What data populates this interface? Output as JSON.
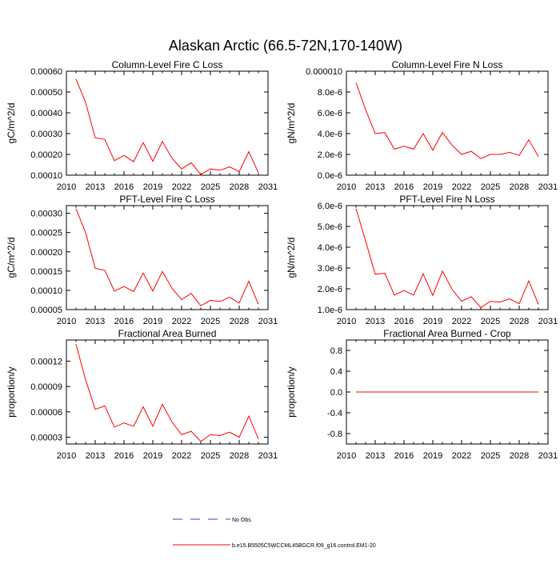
{
  "figure": {
    "title": "Alaskan Arctic (66.5-72N,170-140W)"
  },
  "chart_data": [
    {
      "type": "line",
      "title": "Column-Level Fire C Loss",
      "xlabel": "",
      "ylabel": "gC/m^2/d",
      "xlim": [
        2010,
        2031
      ],
      "ylim": [
        0.0001,
        0.0006
      ],
      "xticks": [
        2010,
        2013,
        2016,
        2019,
        2022,
        2025,
        2028,
        2031
      ],
      "yticks": [
        "0.00010",
        "0.00020",
        "0.00030",
        "0.00040",
        "0.00050",
        "0.00060"
      ],
      "ytick_values": [
        0.0001,
        0.0002,
        0.0003,
        0.0004,
        0.0005,
        0.0006
      ],
      "grid": false,
      "x": [
        2011,
        2012,
        2013,
        2014,
        2015,
        2016,
        2017,
        2018,
        2019,
        2020,
        2021,
        2022,
        2023,
        2024,
        2025,
        2026,
        2027,
        2028,
        2029,
        2030
      ],
      "series": [
        {
          "values": [
            0.000562,
            0.00045,
            0.00028,
            0.000272,
            0.00017,
            0.000195,
            0.000165,
            0.000257,
            0.000167,
            0.000262,
            0.000182,
            0.00013,
            0.00016,
            0.000103,
            0.00013,
            0.000124,
            0.00014,
            0.000117,
            0.000213,
            0.000112
          ],
          "color": "#ff0000"
        }
      ]
    },
    {
      "type": "line",
      "title": "Column-Level Fire N Loss",
      "xlabel": "",
      "ylabel": "gN/m^2/d",
      "xlim": [
        2010,
        2031
      ],
      "ylim": [
        0,
        1e-05
      ],
      "xticks": [
        2010,
        2013,
        2016,
        2019,
        2022,
        2025,
        2028,
        2031
      ],
      "yticks": [
        "0.0e-6",
        "2.0e-6",
        "4.0e-6",
        "6.0e-6",
        "8.0e-6",
        "0.000010"
      ],
      "ytick_values": [
        0,
        2e-06,
        4e-06,
        6e-06,
        8e-06,
        1e-05
      ],
      "grid": false,
      "x": [
        2011,
        2012,
        2013,
        2014,
        2015,
        2016,
        2017,
        2018,
        2019,
        2020,
        2021,
        2022,
        2023,
        2024,
        2025,
        2026,
        2027,
        2028,
        2029,
        2030
      ],
      "series": [
        {
          "values": [
            8.9e-06,
            6.3e-06,
            4e-06,
            4.1e-06,
            2.5e-06,
            2.8e-06,
            2.5e-06,
            4e-06,
            2.4e-06,
            4.1e-06,
            2.9e-06,
            2e-06,
            2.3e-06,
            1.6e-06,
            2e-06,
            2e-06,
            2.2e-06,
            1.9e-06,
            3.4e-06,
            1.8e-06
          ],
          "color": "#ff0000"
        }
      ]
    },
    {
      "type": "line",
      "title": "PFT-Level Fire C Loss",
      "xlabel": "",
      "ylabel": "gC/m^2/d",
      "xlim": [
        2010,
        2031
      ],
      "ylim": [
        5e-05,
        0.00032
      ],
      "xticks": [
        2010,
        2013,
        2016,
        2019,
        2022,
        2025,
        2028,
        2031
      ],
      "yticks": [
        "0.00005",
        "0.00010",
        "0.00015",
        "0.00020",
        "0.00025",
        "0.00030"
      ],
      "ytick_values": [
        5e-05,
        0.0001,
        0.00015,
        0.0002,
        0.00025,
        0.0003
      ],
      "grid": false,
      "x": [
        2011,
        2012,
        2013,
        2014,
        2015,
        2016,
        2017,
        2018,
        2019,
        2020,
        2021,
        2022,
        2023,
        2024,
        2025,
        2026,
        2027,
        2028,
        2029,
        2030
      ],
      "series": [
        {
          "values": [
            0.000312,
            0.00025,
            0.000157,
            0.000152,
            9.8e-05,
            0.00011,
            9.7e-05,
            0.000145,
            9.8e-05,
            0.000149,
            0.000105,
            7.6e-05,
            9.2e-05,
            6e-05,
            7.4e-05,
            7.1e-05,
            8.2e-05,
            6.7e-05,
            0.000124,
            6.4e-05
          ],
          "color": "#ff0000"
        }
      ]
    },
    {
      "type": "line",
      "title": "PFT-Level Fire N Loss",
      "xlabel": "",
      "ylabel": "gN/m^2/d",
      "xlim": [
        2010,
        2031
      ],
      "ylim": [
        1e-06,
        6e-06
      ],
      "xticks": [
        2010,
        2013,
        2016,
        2019,
        2022,
        2025,
        2028,
        2031
      ],
      "yticks": [
        "1.0e-6",
        "2.0e-6",
        "3.0e-6",
        "4.0e-6",
        "5.0e-6",
        "6.0e-6"
      ],
      "ytick_values": [
        1e-06,
        2e-06,
        3e-06,
        4e-06,
        5e-06,
        6e-06
      ],
      "grid": false,
      "x": [
        2011,
        2012,
        2013,
        2014,
        2015,
        2016,
        2017,
        2018,
        2019,
        2020,
        2021,
        2022,
        2023,
        2024,
        2025,
        2026,
        2027,
        2028,
        2029,
        2030
      ],
      "series": [
        {
          "values": [
            5.85e-06,
            4.3e-06,
            2.7e-06,
            2.75e-06,
            1.7e-06,
            1.92e-06,
            1.7e-06,
            2.72e-06,
            1.68e-06,
            2.85e-06,
            1.98e-06,
            1.4e-06,
            1.62e-06,
            1.1e-06,
            1.4e-06,
            1.36e-06,
            1.52e-06,
            1.28e-06,
            2.38e-06,
            1.25e-06
          ],
          "color": "#ff0000"
        }
      ]
    },
    {
      "type": "line",
      "title": "Fractional Area Burned",
      "xlabel": "",
      "ylabel": "proportion/y",
      "xlim": [
        2010,
        2031
      ],
      "ylim": [
        2.2e-05,
        0.000145
      ],
      "xticks": [
        2010,
        2013,
        2016,
        2019,
        2022,
        2025,
        2028,
        2031
      ],
      "yticks": [
        "0.00003",
        "0.00006",
        "0.00009",
        "0.00012"
      ],
      "ytick_values": [
        3e-05,
        6e-05,
        9e-05,
        0.00012
      ],
      "grid": false,
      "x": [
        2011,
        2012,
        2013,
        2014,
        2015,
        2016,
        2017,
        2018,
        2019,
        2020,
        2021,
        2022,
        2023,
        2024,
        2025,
        2026,
        2027,
        2028,
        2029,
        2030
      ],
      "series": [
        {
          "values": [
            0.00014,
            9.8e-05,
            6.3e-05,
            6.7e-05,
            4.2e-05,
            4.7e-05,
            4.3e-05,
            6.6e-05,
            4.3e-05,
            6.9e-05,
            4.8e-05,
            3.3e-05,
            3.7e-05,
            2.5e-05,
            3.3e-05,
            3.2e-05,
            3.6e-05,
            3e-05,
            5.5e-05,
            2.8e-05
          ],
          "color": "#ff0000"
        }
      ]
    },
    {
      "type": "line",
      "title": "Fractional Area Burned - Crop",
      "xlabel": "",
      "ylabel": "proportion/y",
      "xlim": [
        2010,
        2031
      ],
      "ylim": [
        -1,
        1
      ],
      "xticks": [
        2010,
        2013,
        2016,
        2019,
        2022,
        2025,
        2028,
        2031
      ],
      "yticks": [
        "-0.8",
        "-0.4",
        "0.0",
        "0.4",
        "0.8"
      ],
      "ytick_values": [
        -0.8,
        -0.4,
        0,
        0.4,
        0.8
      ],
      "grid": false,
      "x": [
        2011,
        2012,
        2013,
        2014,
        2015,
        2016,
        2017,
        2018,
        2019,
        2020,
        2021,
        2022,
        2023,
        2024,
        2025,
        2026,
        2027,
        2028,
        2029,
        2030
      ],
      "series": [
        {
          "values": [
            0,
            0,
            0,
            0,
            0,
            0,
            0,
            0,
            0,
            0,
            0,
            0,
            0,
            0,
            0,
            0,
            0,
            0,
            0,
            0
          ],
          "color": "#ff0000"
        }
      ]
    }
  ],
  "legend": {
    "entries": [
      {
        "label": "No Obs",
        "color": "#3b3bbf",
        "style": "dashed"
      },
      {
        "label": "b.e15.B5505C5WCCML45BGCR.f09_g16.control.EM1-20",
        "color": "#ff0000",
        "style": "solid"
      }
    ]
  }
}
